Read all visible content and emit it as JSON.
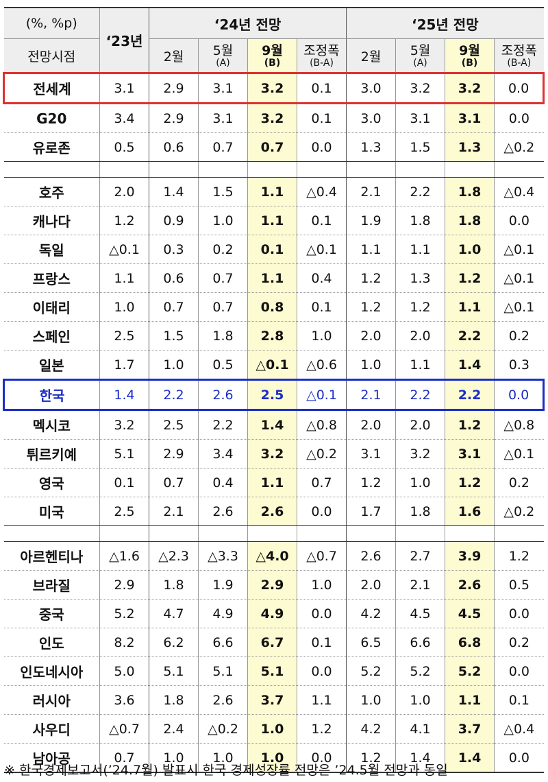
{
  "header": {
    "unit": "(%, %p)",
    "period_label": "전망시점",
    "year23": "‘23년",
    "year24": "‘24년 전망",
    "year25": "‘25년 전망",
    "cols24": [
      {
        "main": "2월",
        "sub": ""
      },
      {
        "main": "5월",
        "sub": "(A)"
      },
      {
        "main": "9월",
        "sub": "(B)"
      },
      {
        "main": "조정폭",
        "sub": "(B-A)"
      }
    ],
    "cols25": [
      {
        "main": "2월",
        "sub": ""
      },
      {
        "main": "5월",
        "sub": "(A)"
      },
      {
        "main": "9월",
        "sub": "(B)"
      },
      {
        "main": "조정폭",
        "sub": "(B-A)"
      }
    ]
  },
  "rows": [
    {
      "name": "전세계",
      "v": [
        "3.1",
        "2.9",
        "3.1",
        "3.2",
        "0.1",
        "3.0",
        "3.2",
        "3.2",
        "0.0"
      ]
    },
    {
      "name": "G20",
      "v": [
        "3.4",
        "2.9",
        "3.1",
        "3.2",
        "0.1",
        "3.0",
        "3.1",
        "3.1",
        "0.0"
      ]
    },
    {
      "name": "유로존",
      "v": [
        "0.5",
        "0.6",
        "0.7",
        "0.7",
        "0.0",
        "1.3",
        "1.5",
        "1.3",
        "△0.2"
      ]
    },
    {
      "name": "호주",
      "v": [
        "2.0",
        "1.4",
        "1.5",
        "1.1",
        "△0.4",
        "2.1",
        "2.2",
        "1.8",
        "△0.4"
      ]
    },
    {
      "name": "캐나다",
      "v": [
        "1.2",
        "0.9",
        "1.0",
        "1.1",
        "0.1",
        "1.9",
        "1.8",
        "1.8",
        "0.0"
      ]
    },
    {
      "name": "독일",
      "v": [
        "△0.1",
        "0.3",
        "0.2",
        "0.1",
        "△0.1",
        "1.1",
        "1.1",
        "1.0",
        "△0.1"
      ]
    },
    {
      "name": "프랑스",
      "v": [
        "1.1",
        "0.6",
        "0.7",
        "1.1",
        "0.4",
        "1.2",
        "1.3",
        "1.2",
        "△0.1"
      ]
    },
    {
      "name": "이태리",
      "v": [
        "1.0",
        "0.7",
        "0.7",
        "0.8",
        "0.1",
        "1.2",
        "1.2",
        "1.1",
        "△0.1"
      ]
    },
    {
      "name": "스페인",
      "v": [
        "2.5",
        "1.5",
        "1.8",
        "2.8",
        "1.0",
        "2.0",
        "2.0",
        "2.2",
        "0.2"
      ]
    },
    {
      "name": "일본",
      "v": [
        "1.7",
        "1.0",
        "0.5",
        "△0.1",
        "△0.6",
        "1.0",
        "1.1",
        "1.4",
        "0.3"
      ]
    },
    {
      "name": "한국",
      "v": [
        "1.4",
        "2.2",
        "2.6",
        "2.5",
        "△0.1",
        "2.1",
        "2.2",
        "2.2",
        "0.0"
      ]
    },
    {
      "name": "멕시코",
      "v": [
        "3.2",
        "2.5",
        "2.2",
        "1.4",
        "△0.8",
        "2.0",
        "2.0",
        "1.2",
        "△0.8"
      ]
    },
    {
      "name": "튀르키예",
      "v": [
        "5.1",
        "2.9",
        "3.4",
        "3.2",
        "△0.2",
        "3.1",
        "3.2",
        "3.1",
        "△0.1"
      ]
    },
    {
      "name": "영국",
      "v": [
        "0.1",
        "0.7",
        "0.4",
        "1.1",
        "0.7",
        "1.2",
        "1.0",
        "1.2",
        "0.2"
      ]
    },
    {
      "name": "미국",
      "v": [
        "2.5",
        "2.1",
        "2.6",
        "2.6",
        "0.0",
        "1.7",
        "1.8",
        "1.6",
        "△0.2"
      ]
    },
    {
      "name": "아르헨티나",
      "v": [
        "△1.6",
        "△2.3",
        "△3.3",
        "△4.0",
        "△0.7",
        "2.6",
        "2.7",
        "3.9",
        "1.2"
      ]
    },
    {
      "name": "브라질",
      "v": [
        "2.9",
        "1.8",
        "1.9",
        "2.9",
        "1.0",
        "2.0",
        "2.1",
        "2.6",
        "0.5"
      ]
    },
    {
      "name": "중국",
      "v": [
        "5.2",
        "4.7",
        "4.9",
        "4.9",
        "0.0",
        "4.2",
        "4.5",
        "4.5",
        "0.0"
      ]
    },
    {
      "name": "인도",
      "v": [
        "8.2",
        "6.2",
        "6.6",
        "6.7",
        "0.1",
        "6.5",
        "6.6",
        "6.8",
        "0.2"
      ]
    },
    {
      "name": "인도네시아",
      "v": [
        "5.0",
        "5.1",
        "5.1",
        "5.1",
        "0.0",
        "5.2",
        "5.2",
        "5.2",
        "0.0"
      ]
    },
    {
      "name": "러시아",
      "v": [
        "3.6",
        "1.8",
        "2.6",
        "3.7",
        "1.1",
        "1.0",
        "1.0",
        "1.1",
        "0.1"
      ]
    },
    {
      "name": "사우디",
      "v": [
        "△0.7",
        "2.4",
        "△0.2",
        "1.0",
        "1.2",
        "4.2",
        "4.1",
        "3.7",
        "△0.4"
      ]
    },
    {
      "name": "남아공",
      "v": [
        "0.7",
        "1.0",
        "1.0",
        "1.0",
        "0.0",
        "1.2",
        "1.4",
        "1.4",
        "0.0"
      ]
    }
  ],
  "footnote": "※ 한국경제보고서(’24.7월) 발표시 한국 경제성장률 전망은 ’24.5월 전망과 동일"
}
